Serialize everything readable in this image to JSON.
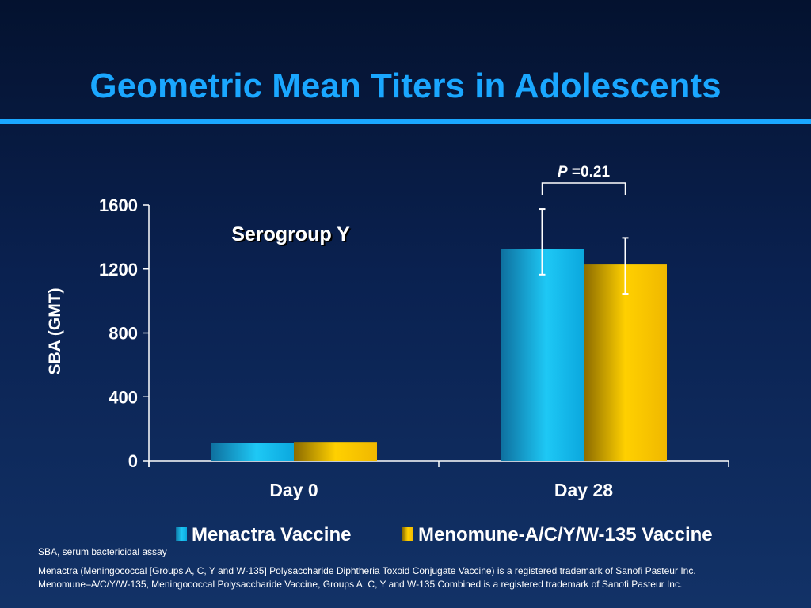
{
  "slide": {
    "title": "Geometric Mean Titers in Adolescents",
    "colors": {
      "title": "#1aa7ff",
      "rule": "#1aa7ff",
      "background": "#0a2150"
    }
  },
  "chart_data": {
    "type": "bar",
    "title": "",
    "annotation": "Serogroup Y",
    "ylabel": "SBA (GMT)",
    "xlabel": "",
    "ylim": [
      0,
      1600
    ],
    "yticks": [
      0,
      400,
      800,
      1200,
      1600
    ],
    "categories": [
      "Day 0",
      "Day 28"
    ],
    "series": [
      {
        "name": "Menactra Vaccine",
        "color": "#19b6e8",
        "values": [
          110,
          1325
        ],
        "error_low": [
          null,
          1165
        ],
        "error_high": [
          null,
          1575
        ]
      },
      {
        "name": "Menomune-A/C/Y/W-135 Vaccine",
        "color": "#f0b800",
        "values": [
          118,
          1228
        ],
        "error_low": [
          null,
          1045
        ],
        "error_high": [
          null,
          1395
        ]
      }
    ],
    "significance": {
      "category": "Day 28",
      "label_italic": "P",
      "label_rest": " =0.21"
    },
    "grid": false,
    "legend_position": "bottom"
  },
  "footnotes": {
    "abbreviation": "SBA, serum bactericidal assay",
    "line1": "Menactra (Meningococcal [Groups A, C, Y and W-135] Polysaccharide Diphtheria Toxoid Conjugate Vaccine) is a registered trademark of Sanofi Pasteur Inc.",
    "line2": "Menomune–A/C/Y/W-135, Meningococcal Polysaccharide Vaccine, Groups A, C, Y and W-135 Combined is a registered trademark of Sanofi Pasteur Inc."
  }
}
